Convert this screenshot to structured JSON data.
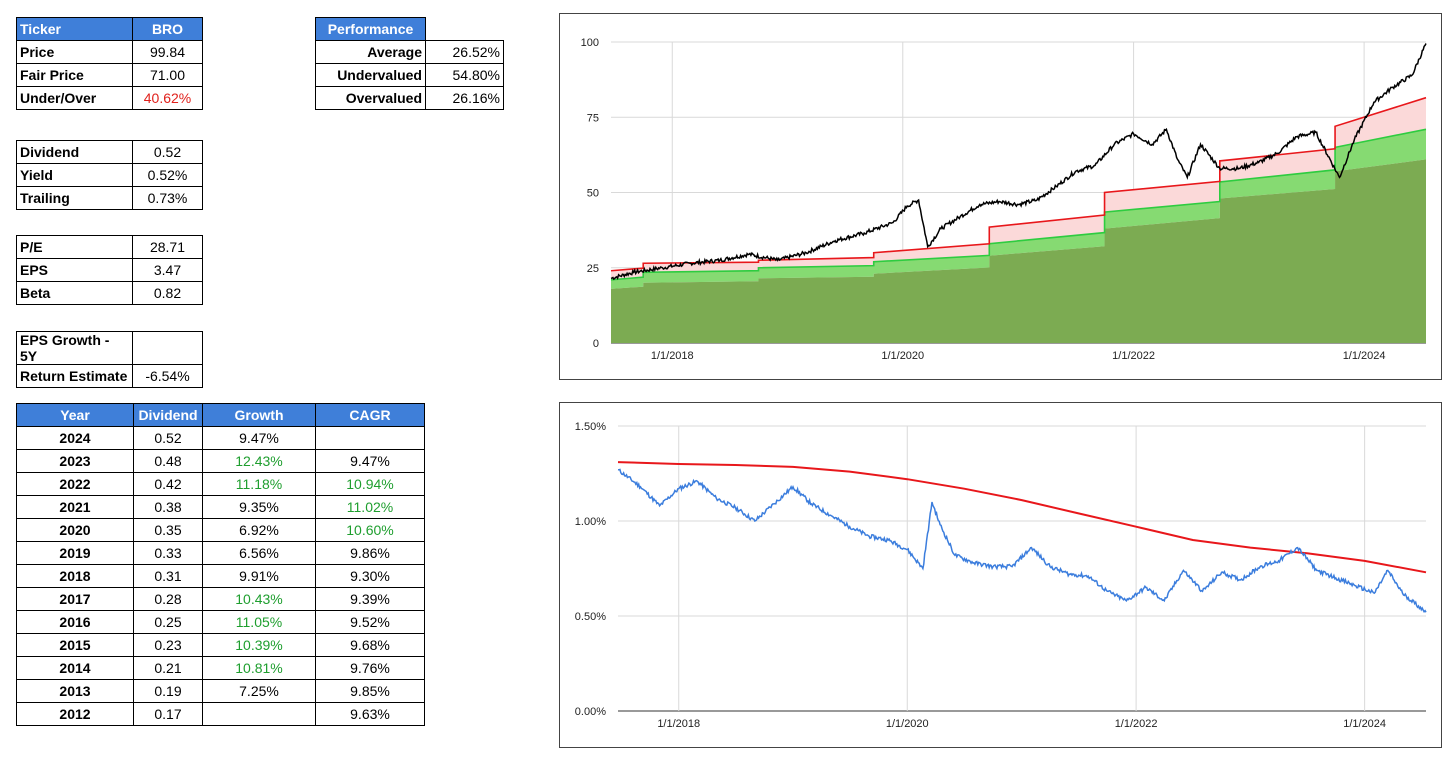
{
  "ticker_table": {
    "header": [
      "Ticker",
      "BRO"
    ],
    "rows": [
      {
        "label": "Price",
        "value": "99.84"
      },
      {
        "label": "Fair Price",
        "value": "71.00"
      },
      {
        "label": "Under/Over",
        "value": "40.62%"
      }
    ]
  },
  "performance_table": {
    "header": "Performance",
    "rows": [
      {
        "label": "Average",
        "value": "26.52%"
      },
      {
        "label": "Undervalued",
        "value": "54.80%"
      },
      {
        "label": "Overvalued",
        "value": "26.16%"
      }
    ]
  },
  "dividend_table": {
    "rows": [
      {
        "label": "Dividend",
        "value": "0.52"
      },
      {
        "label": "Yield",
        "value": "0.52%"
      },
      {
        "label": "Trailing",
        "value": "0.73%"
      }
    ]
  },
  "valuation_table": {
    "rows": [
      {
        "label": "P/E",
        "value": "28.71"
      },
      {
        "label": "EPS",
        "value": "3.47"
      },
      {
        "label": "Beta",
        "value": "0.82"
      }
    ]
  },
  "growth_table": {
    "rows": [
      {
        "label": "EPS Growth - 5Y",
        "value": ""
      },
      {
        "label": "Return Estimate",
        "value": "-6.54%"
      }
    ]
  },
  "history_table": {
    "headers": [
      "Year",
      "Dividend",
      "Growth",
      "CAGR"
    ],
    "rows": [
      {
        "year": "2024",
        "dividend": "0.52",
        "growth": "9.47%",
        "cagr": ""
      },
      {
        "year": "2023",
        "dividend": "0.48",
        "growth": "12.43%",
        "cagr": "9.47%"
      },
      {
        "year": "2022",
        "dividend": "0.42",
        "growth": "11.18%",
        "cagr": "10.94%"
      },
      {
        "year": "2021",
        "dividend": "0.38",
        "growth": "9.35%",
        "cagr": "11.02%"
      },
      {
        "year": "2020",
        "dividend": "0.35",
        "growth": "6.92%",
        "cagr": "10.60%"
      },
      {
        "year": "2019",
        "dividend": "0.33",
        "growth": "6.56%",
        "cagr": "9.86%"
      },
      {
        "year": "2018",
        "dividend": "0.31",
        "growth": "9.91%",
        "cagr": "9.30%"
      },
      {
        "year": "2017",
        "dividend": "0.28",
        "growth": "10.43%",
        "cagr": "9.39%"
      },
      {
        "year": "2016",
        "dividend": "0.25",
        "growth": "11.05%",
        "cagr": "9.52%"
      },
      {
        "year": "2015",
        "dividend": "0.23",
        "growth": "10.39%",
        "cagr": "9.68%"
      },
      {
        "year": "2014",
        "dividend": "0.21",
        "growth": "10.81%",
        "cagr": "9.76%"
      },
      {
        "year": "2013",
        "dividend": "0.19",
        "growth": "7.25%",
        "cagr": "9.85%"
      },
      {
        "year": "2012",
        "dividend": "0.17",
        "growth": "",
        "cagr": "9.63%"
      }
    ]
  },
  "colors": {
    "header_blue": "#3f7fd9",
    "negative_red": "#e0201b",
    "positive_green": "#1e9e2e"
  },
  "chart_data": [
    {
      "type": "area",
      "title": "",
      "xlabel": "",
      "ylabel": "",
      "x_range": [
        "2017-06-21",
        "2024-07-15"
      ],
      "ylim": [
        0,
        100
      ],
      "yticks": [
        "0",
        "25",
        "50",
        "75",
        "100"
      ],
      "xticks": [
        "1/1/2018",
        "1/1/2020",
        "1/1/2022",
        "1/1/2024"
      ],
      "grid": true,
      "step_dates": [
        "2017-06-21",
        "2017-10-01",
        "2018-10-01",
        "2019-10-01",
        "2020-10-01",
        "2021-10-01",
        "2022-10-01",
        "2023-10-01",
        "2024-07-15"
      ],
      "series": [
        {
          "role": "area-base",
          "color": "#7cab52",
          "values": [
            18.0,
            20.0,
            21.5,
            23.0,
            29.0,
            38.0,
            48.0,
            57.0,
            61.0
          ]
        },
        {
          "role": "area-fair",
          "color": "#2ecc40",
          "values": [
            21.0,
            23.5,
            25.0,
            27.0,
            33.0,
            43.5,
            53.5,
            65.0,
            71.0
          ]
        },
        {
          "role": "line-upper",
          "color": "#e8171b",
          "values": [
            24.0,
            26.5,
            27.5,
            30.0,
            38.5,
            50.0,
            60.5,
            72.0,
            81.5
          ]
        },
        {
          "role": "price",
          "color": "#000000",
          "points": [
            [
              "2017-06-21",
              21.5
            ],
            [
              "2017-09-01",
              23.5
            ],
            [
              "2017-12-01",
              25.0
            ],
            [
              "2018-03-01",
              26.5
            ],
            [
              "2018-06-01",
              27.5
            ],
            [
              "2018-09-01",
              29.5
            ],
            [
              "2018-12-01",
              27.5
            ],
            [
              "2019-03-01",
              30.0
            ],
            [
              "2019-06-01",
              34.0
            ],
            [
              "2019-09-01",
              36.5
            ],
            [
              "2019-12-01",
              40.0
            ],
            [
              "2020-01-15",
              45.5
            ],
            [
              "2020-02-20",
              47.5
            ],
            [
              "2020-03-20",
              32.0
            ],
            [
              "2020-05-01",
              38.0
            ],
            [
              "2020-07-01",
              42.0
            ],
            [
              "2020-09-01",
              46.0
            ],
            [
              "2020-11-01",
              47.0
            ],
            [
              "2021-01-01",
              46.0
            ],
            [
              "2021-03-01",
              47.5
            ],
            [
              "2021-05-01",
              52.0
            ],
            [
              "2021-07-01",
              57.0
            ],
            [
              "2021-09-01",
              59.0
            ],
            [
              "2021-11-01",
              66.0
            ],
            [
              "2022-01-01",
              69.5
            ],
            [
              "2022-03-01",
              66.0
            ],
            [
              "2022-04-15",
              71.0
            ],
            [
              "2022-05-20",
              61.0
            ],
            [
              "2022-06-20",
              55.0
            ],
            [
              "2022-08-01",
              66.0
            ],
            [
              "2022-10-01",
              58.0
            ],
            [
              "2022-12-01",
              58.0
            ],
            [
              "2023-02-01",
              60.0
            ],
            [
              "2023-04-01",
              63.0
            ],
            [
              "2023-06-01",
              68.5
            ],
            [
              "2023-08-01",
              70.0
            ],
            [
              "2023-10-15",
              55.0
            ],
            [
              "2023-12-01",
              67.5
            ],
            [
              "2024-02-01",
              80.0
            ],
            [
              "2024-04-01",
              85.0
            ],
            [
              "2024-06-01",
              89.0
            ],
            [
              "2024-07-15",
              99.5
            ]
          ]
        }
      ]
    },
    {
      "type": "line",
      "title": "",
      "xlabel": "",
      "ylabel": "",
      "x_range": [
        "2017-06-21",
        "2024-07-15"
      ],
      "ylim": [
        0,
        1.5
      ],
      "yticks": [
        "0.00%",
        "0.50%",
        "1.00%",
        "1.50%"
      ],
      "xticks": [
        "1/1/2018",
        "1/1/2020",
        "1/1/2022",
        "1/1/2024"
      ],
      "grid": true,
      "series": [
        {
          "role": "average-yield",
          "color": "#e8171b",
          "points": [
            [
              "2017-06-21",
              1.31
            ],
            [
              "2018-01-01",
              1.3
            ],
            [
              "2018-07-01",
              1.295
            ],
            [
              "2019-01-01",
              1.285
            ],
            [
              "2019-07-01",
              1.26
            ],
            [
              "2020-01-01",
              1.22
            ],
            [
              "2020-07-01",
              1.17
            ],
            [
              "2021-01-01",
              1.11
            ],
            [
              "2021-07-01",
              1.04
            ],
            [
              "2022-01-01",
              0.97
            ],
            [
              "2022-07-01",
              0.9
            ],
            [
              "2023-01-01",
              0.86
            ],
            [
              "2023-07-01",
              0.83
            ],
            [
              "2024-01-01",
              0.79
            ],
            [
              "2024-07-15",
              0.73
            ]
          ]
        },
        {
          "role": "dividend-yield",
          "color": "#3b7ddd",
          "points": [
            [
              "2017-06-21",
              1.27
            ],
            [
              "2017-09-01",
              1.18
            ],
            [
              "2017-11-01",
              1.08
            ],
            [
              "2018-01-01",
              1.17
            ],
            [
              "2018-03-01",
              1.21
            ],
            [
              "2018-05-01",
              1.12
            ],
            [
              "2018-07-01",
              1.07
            ],
            [
              "2018-09-01",
              1.0
            ],
            [
              "2018-11-01",
              1.09
            ],
            [
              "2019-01-01",
              1.18
            ],
            [
              "2019-03-01",
              1.09
            ],
            [
              "2019-05-01",
              1.03
            ],
            [
              "2019-07-01",
              0.97
            ],
            [
              "2019-09-01",
              0.92
            ],
            [
              "2019-11-01",
              0.9
            ],
            [
              "2020-01-01",
              0.85
            ],
            [
              "2020-02-20",
              0.75
            ],
            [
              "2020-03-20",
              1.1
            ],
            [
              "2020-04-15",
              0.98
            ],
            [
              "2020-06-01",
              0.82
            ],
            [
              "2020-08-01",
              0.78
            ],
            [
              "2020-10-01",
              0.76
            ],
            [
              "2020-12-01",
              0.76
            ],
            [
              "2021-02-01",
              0.86
            ],
            [
              "2021-04-01",
              0.76
            ],
            [
              "2021-06-01",
              0.72
            ],
            [
              "2021-08-01",
              0.71
            ],
            [
              "2021-10-01",
              0.63
            ],
            [
              "2021-12-01",
              0.58
            ],
            [
              "2022-02-01",
              0.65
            ],
            [
              "2022-04-01",
              0.58
            ],
            [
              "2022-06-01",
              0.74
            ],
            [
              "2022-08-01",
              0.63
            ],
            [
              "2022-10-01",
              0.73
            ],
            [
              "2022-12-01",
              0.69
            ],
            [
              "2023-02-01",
              0.76
            ],
            [
              "2023-04-01",
              0.79
            ],
            [
              "2023-06-01",
              0.86
            ],
            [
              "2023-08-01",
              0.74
            ],
            [
              "2023-10-01",
              0.7
            ],
            [
              "2023-12-01",
              0.66
            ],
            [
              "2024-02-01",
              0.62
            ],
            [
              "2024-03-15",
              0.74
            ],
            [
              "2024-05-01",
              0.62
            ],
            [
              "2024-07-15",
              0.52
            ]
          ]
        }
      ]
    }
  ]
}
